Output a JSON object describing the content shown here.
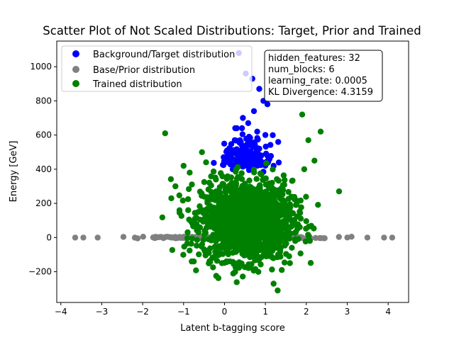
{
  "chart_data": {
    "type": "scatter",
    "title": "Scatter Plot of Not Scaled Distributions: Target, Prior and Trained",
    "xlabel": "Latent b-tagging score",
    "ylabel": "Energy [GeV]",
    "xlim": [
      -4.1,
      4.5
    ],
    "ylim": [
      -380,
      1150
    ],
    "xticks": [
      -4,
      -3,
      -2,
      -1,
      0,
      1,
      2,
      3,
      4
    ],
    "yticks": [
      -200,
      0,
      200,
      400,
      600,
      800,
      1000
    ],
    "grid": false,
    "legend_position": "top-left",
    "series": [
      {
        "name": "Background/Target distribution",
        "color": "#0000ff",
        "x": [
          0.35,
          0.52,
          0.68,
          0.85,
          0.95,
          1.05,
          0.72,
          0.45,
          0.58,
          0.3,
          0.8,
          1.0,
          0.6,
          0.25,
          0.4,
          0.55,
          0.7,
          0.85,
          0.5,
          0.65,
          0.15,
          0.05,
          0.9,
          1.1,
          0.35,
          0.75,
          1.2,
          0.45,
          0.2,
          0.6,
          0.95
        ],
        "y": [
          1080,
          960,
          930,
          870,
          800,
          780,
          740,
          700,
          670,
          640,
          620,
          600,
          590,
          570,
          560,
          545,
          530,
          520,
          510,
          500,
          490,
          470,
          480,
          460,
          450,
          440,
          420,
          415,
          400,
          395,
          385
        ]
      },
      {
        "name": "Base/Prior distribution",
        "color": "#808080",
        "x_range": [
          -3.7,
          4.1
        ],
        "y_range": [
          -10,
          10
        ],
        "outliers_x": [
          -3.65,
          -3.45,
          -3.1,
          3.9,
          4.1
        ],
        "outliers_y": [
          0,
          0,
          0,
          0,
          0
        ]
      },
      {
        "name": "Trained distribution",
        "color": "#008000",
        "center": [
          0.55,
          100
        ],
        "x_spread": 1.0,
        "y_spread": 180,
        "outliers_x": [
          -1.45,
          -1.2,
          -1.3,
          -1.1,
          -0.8,
          -0.75,
          -0.55,
          -0.45,
          1.9,
          2.05,
          2.35,
          2.8,
          1.6,
          1.3,
          1.4,
          1.2,
          -1.0,
          2.2,
          1.95,
          -0.85
        ],
        "outliers_y": [
          610,
          300,
          230,
          160,
          -140,
          -140,
          500,
          440,
          720,
          570,
          620,
          270,
          -150,
          -310,
          -190,
          -270,
          420,
          450,
          400,
          380
        ]
      }
    ]
  },
  "info_box": {
    "line1": "hidden_features: 32",
    "line2": "num_blocks: 6",
    "line3": "learning_rate: 0.0005",
    "line4": "KL Divergence: 4.3159"
  }
}
